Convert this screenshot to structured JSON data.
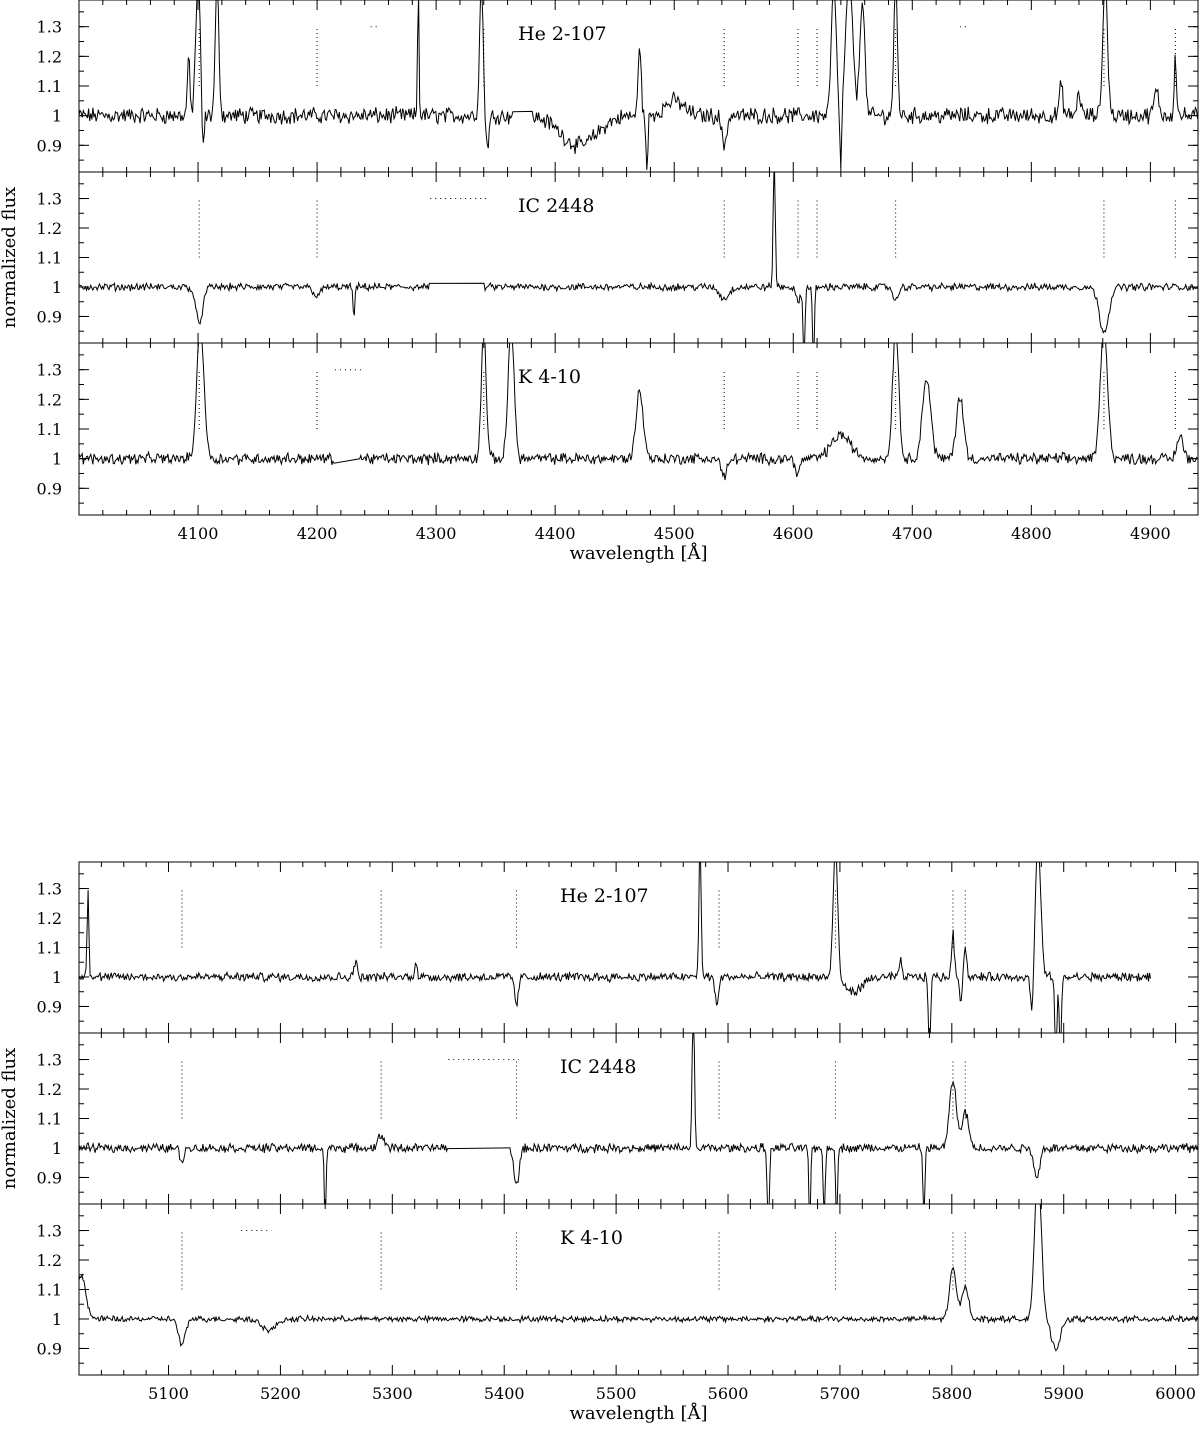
{
  "chart_data": [
    {
      "type": "line",
      "xlabel": "wavelength [Å]",
      "ylabel": "normalized flux",
      "xlim": [
        4000,
        4940
      ],
      "ylim": [
        0.81,
        1.39
      ],
      "x_ticks": [
        4100,
        4200,
        4300,
        4400,
        4500,
        4600,
        4700,
        4800,
        4900
      ],
      "y_ticks": [
        0.9,
        1,
        1.1,
        1.2,
        1.3
      ],
      "y_tick_labels": [
        "0.9",
        "1",
        "1.1",
        "1.2",
        "1.3"
      ],
      "grid": false,
      "panels": [
        {
          "label": "He 2-107",
          "noise": 0.022,
          "gap": [
            4365,
            4380
          ],
          "line_markers": [
            4101,
            4200,
            4340,
            4542,
            4604,
            4620,
            4686,
            4861,
            4921
          ],
          "marker_range": [
            1.1,
            1.3
          ],
          "bar_markers": [
            {
              "x": [
                4245,
                4252
              ],
              "y": 1.3
            },
            {
              "x": [
                4740,
                4747
              ],
              "y": 1.3
            }
          ],
          "features": [
            {
              "x": 4092,
              "amp": 0.2,
              "w": 1.0
            },
            {
              "x": 4100,
              "amp": 0.45,
              "w": 2.0
            },
            {
              "x": 4104,
              "amp": -0.15,
              "w": 1.0
            },
            {
              "x": 4116,
              "amp": 0.45,
              "w": 1.5
            },
            {
              "x": 4285,
              "amp": 0.45,
              "w": 0.6
            },
            {
              "x": 4338,
              "amp": 0.45,
              "w": 1.5
            },
            {
              "x": 4343,
              "amp": -0.1,
              "w": 1.5
            },
            {
              "x": 4420,
              "amp": -0.1,
              "w": 15
            },
            {
              "x": 4471,
              "amp": 0.25,
              "w": 1.2
            },
            {
              "x": 4477,
              "amp": -0.2,
              "w": 0.8
            },
            {
              "x": 4500,
              "amp": 0.05,
              "w": 8
            },
            {
              "x": 4542,
              "amp": -0.1,
              "w": 2.0
            },
            {
              "x": 4634,
              "amp": 0.45,
              "w": 2.0
            },
            {
              "x": 4640,
              "amp": -0.2,
              "w": 0.8
            },
            {
              "x": 4647,
              "amp": 0.45,
              "w": 3.0
            },
            {
              "x": 4658,
              "amp": 0.4,
              "w": 2.0
            },
            {
              "x": 4686,
              "amp": 0.45,
              "w": 1.5
            },
            {
              "x": 4825,
              "amp": 0.1,
              "w": 1.5
            },
            {
              "x": 4840,
              "amp": 0.08,
              "w": 1.5
            },
            {
              "x": 4862,
              "amp": 0.45,
              "w": 2.0
            },
            {
              "x": 4905,
              "amp": 0.08,
              "w": 2.0
            },
            {
              "x": 4921,
              "amp": 0.2,
              "w": 1.0
            }
          ]
        },
        {
          "label": "IC 2448",
          "noise": 0.01,
          "gap": [
            4295,
            4340
          ],
          "line_markers": [
            4101,
            4200,
            4542,
            4604,
            4620,
            4686,
            4861,
            4921
          ],
          "marker_range": [
            1.1,
            1.3
          ],
          "bar_markers": [
            {
              "x": [
                4295,
                4345
              ],
              "y": 1.3
            }
          ],
          "features": [
            {
              "x": 4101,
              "amp": -0.12,
              "w": 3.0
            },
            {
              "x": 4200,
              "amp": -0.03,
              "w": 3.0
            },
            {
              "x": 4231,
              "amp": -0.1,
              "w": 0.8
            },
            {
              "x": 4542,
              "amp": -0.04,
              "w": 4.0
            },
            {
              "x": 4584,
              "amp": 0.5,
              "w": 0.8
            },
            {
              "x": 4604,
              "amp": -0.05,
              "w": 2.0
            },
            {
              "x": 4609,
              "amp": -0.25,
              "w": 0.8
            },
            {
              "x": 4617,
              "amp": -0.25,
              "w": 0.8
            },
            {
              "x": 4686,
              "amp": -0.05,
              "w": 2.0
            },
            {
              "x": 4861,
              "amp": -0.15,
              "w": 4.0
            }
          ]
        },
        {
          "label": "K 4-10",
          "noise": 0.015,
          "gap": [
            4215,
            4235
          ],
          "line_markers": [
            4101,
            4200,
            4340,
            4542,
            4604,
            4620,
            4686,
            4861,
            4921
          ],
          "marker_range": [
            1.1,
            1.3
          ],
          "bar_markers": [
            {
              "x": [
                4215,
                4237
              ],
              "y": 1.3
            }
          ],
          "features": [
            {
              "x": 4102,
              "amp": 0.45,
              "w": 3.0
            },
            {
              "x": 4340,
              "amp": 0.45,
              "w": 2.0
            },
            {
              "x": 4363,
              "amp": 0.45,
              "w": 2.5
            },
            {
              "x": 4471,
              "amp": 0.23,
              "w": 3.0
            },
            {
              "x": 4542,
              "amp": -0.06,
              "w": 2.5
            },
            {
              "x": 4604,
              "amp": -0.05,
              "w": 2.0
            },
            {
              "x": 4640,
              "amp": 0.08,
              "w": 8.0
            },
            {
              "x": 4686,
              "amp": 0.45,
              "w": 2.5
            },
            {
              "x": 4712,
              "amp": 0.27,
              "w": 3.5
            },
            {
              "x": 4740,
              "amp": 0.21,
              "w": 3.0
            },
            {
              "x": 4861,
              "amp": 0.45,
              "w": 3.0
            },
            {
              "x": 4925,
              "amp": 0.08,
              "w": 2.5
            }
          ]
        }
      ]
    },
    {
      "type": "line",
      "xlabel": "wavelength [Å]",
      "ylabel": "normalized flux",
      "xlim": [
        5020,
        6020
      ],
      "ylim": [
        0.81,
        1.39
      ],
      "x_ticks": [
        5100,
        5200,
        5300,
        5400,
        5500,
        5600,
        5700,
        5800,
        5900,
        6000
      ],
      "y_ticks": [
        0.9,
        1,
        1.1,
        1.2,
        1.3
      ],
      "y_tick_labels": [
        "0.9",
        "1",
        "1.1",
        "1.2",
        "1.3"
      ],
      "grid": false,
      "panels": [
        {
          "label": "He 2-107",
          "noise": 0.012,
          "gap": null,
          "x_end": 5978,
          "line_markers": [
            5112,
            5290,
            5411,
            5592,
            5696,
            5801,
            5812
          ],
          "marker_range": [
            1.1,
            1.3
          ],
          "bar_markers": [],
          "features": [
            {
              "x": 5028,
              "amp": 0.3,
              "w": 0.8
            },
            {
              "x": 5267,
              "amp": 0.05,
              "w": 1.5
            },
            {
              "x": 5321,
              "amp": 0.06,
              "w": 1.0
            },
            {
              "x": 5411,
              "amp": -0.1,
              "w": 1.5
            },
            {
              "x": 5575,
              "amp": 0.45,
              "w": 1.0
            },
            {
              "x": 5590,
              "amp": -0.1,
              "w": 1.5
            },
            {
              "x": 5696,
              "amp": 0.45,
              "w": 2.0
            },
            {
              "x": 5712,
              "amp": -0.05,
              "w": 8.0
            },
            {
              "x": 5754,
              "amp": 0.06,
              "w": 1.0
            },
            {
              "x": 5780,
              "amp": -0.25,
              "w": 1.0
            },
            {
              "x": 5801,
              "amp": 0.15,
              "w": 1.2
            },
            {
              "x": 5808,
              "amp": -0.08,
              "w": 1.0
            },
            {
              "x": 5812,
              "amp": 0.1,
              "w": 1.2
            },
            {
              "x": 5872,
              "amp": -0.15,
              "w": 1.5
            },
            {
              "x": 5877,
              "amp": 0.45,
              "w": 2.5
            },
            {
              "x": 5893,
              "amp": -0.25,
              "w": 1.0
            },
            {
              "x": 5897,
              "amp": -0.25,
              "w": 1.0
            }
          ]
        },
        {
          "label": "IC 2448",
          "noise": 0.012,
          "gap": [
            5350,
            5405
          ],
          "line_markers": [
            5112,
            5290,
            5411,
            5592,
            5696,
            5801,
            5812
          ],
          "marker_range": [
            1.1,
            1.3
          ],
          "bar_markers": [
            {
              "x": [
                5350,
                5413
              ],
              "y": 1.3
            }
          ],
          "features": [
            {
              "x": 5112,
              "amp": -0.04,
              "w": 2.0
            },
            {
              "x": 5240,
              "amp": -0.25,
              "w": 0.8
            },
            {
              "x": 5290,
              "amp": 0.04,
              "w": 3.0
            },
            {
              "x": 5411,
              "amp": -0.12,
              "w": 2.5
            },
            {
              "x": 5569,
              "amp": 0.5,
              "w": 1.0
            },
            {
              "x": 5636,
              "amp": -0.25,
              "w": 1.0
            },
            {
              "x": 5673,
              "amp": -0.25,
              "w": 0.8
            },
            {
              "x": 5686,
              "amp": -0.25,
              "w": 0.8
            },
            {
              "x": 5697,
              "amp": -0.25,
              "w": 0.8
            },
            {
              "x": 5775,
              "amp": -0.25,
              "w": 0.8
            },
            {
              "x": 5801,
              "amp": 0.23,
              "w": 3.0
            },
            {
              "x": 5812,
              "amp": 0.12,
              "w": 3.0
            },
            {
              "x": 5876,
              "amp": -0.1,
              "w": 2.5
            }
          ]
        },
        {
          "label": "K 4-10",
          "noise": 0.008,
          "gap": null,
          "line_markers": [
            5112,
            5290,
            5411,
            5592,
            5696,
            5801,
            5812
          ],
          "marker_range": [
            1.1,
            1.3
          ],
          "bar_markers": [
            {
              "x": [
                5165,
                5192
              ],
              "y": 1.3
            }
          ],
          "features": [
            {
              "x": 5022,
              "amp": 0.15,
              "w": 4.0
            },
            {
              "x": 5112,
              "amp": -0.09,
              "w": 3.0
            },
            {
              "x": 5190,
              "amp": -0.04,
              "w": 6.0
            },
            {
              "x": 5801,
              "amp": 0.17,
              "w": 3.0
            },
            {
              "x": 5812,
              "amp": 0.11,
              "w": 3.0
            },
            {
              "x": 5877,
              "amp": 0.5,
              "w": 3.0
            },
            {
              "x": 5893,
              "amp": -0.1,
              "w": 4.0
            }
          ]
        }
      ]
    }
  ]
}
